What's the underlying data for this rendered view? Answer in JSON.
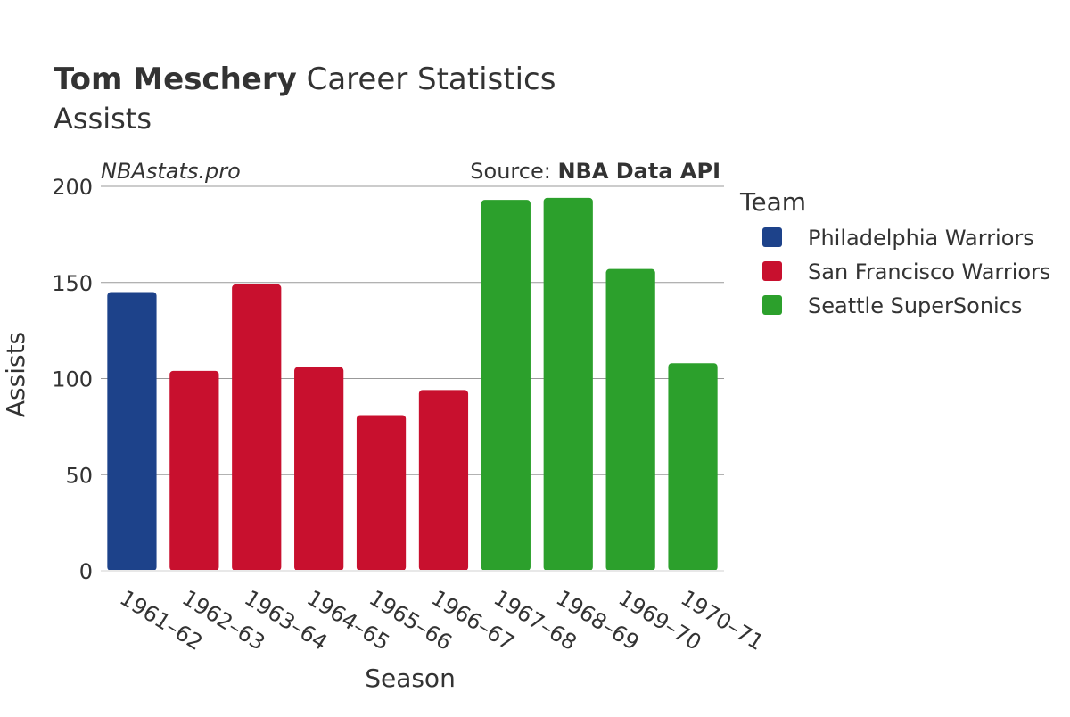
{
  "header": {
    "title_bold": "Tom Meschery",
    "title_rest": " Career Statistics",
    "subtitle": "Assists"
  },
  "watermark": "NBAstats.pro",
  "source": {
    "prefix": "Source: ",
    "name": "NBA Data API"
  },
  "legend": {
    "title": "Team",
    "items": [
      {
        "label": "Philadelphia Warriors",
        "color": "#1d428a"
      },
      {
        "label": "San Francisco Warriors",
        "color": "#c8102e"
      },
      {
        "label": "Seattle SuperSonics",
        "color": "#2ca02c"
      }
    ]
  },
  "chart_data": {
    "type": "bar",
    "title": "Tom Meschery Career Statistics",
    "subtitle": "Assists",
    "xlabel": "Season",
    "ylabel": "Assists",
    "ylim": [
      0,
      200
    ],
    "yticks": [
      0,
      50,
      100,
      150,
      200
    ],
    "grid": true,
    "legend_position": "right",
    "categories": [
      "1961–62",
      "1962–63",
      "1963–64",
      "1964–65",
      "1965–66",
      "1966–67",
      "1967–68",
      "1968–69",
      "1969–70",
      "1970–71"
    ],
    "values": [
      145,
      104,
      149,
      106,
      81,
      94,
      193,
      194,
      157,
      108
    ],
    "teams": [
      "Philadelphia Warriors",
      "San Francisco Warriors",
      "San Francisco Warriors",
      "San Francisco Warriors",
      "San Francisco Warriors",
      "San Francisco Warriors",
      "Seattle SuperSonics",
      "Seattle SuperSonics",
      "Seattle SuperSonics",
      "Seattle SuperSonics"
    ],
    "grid_color": "#999999"
  }
}
